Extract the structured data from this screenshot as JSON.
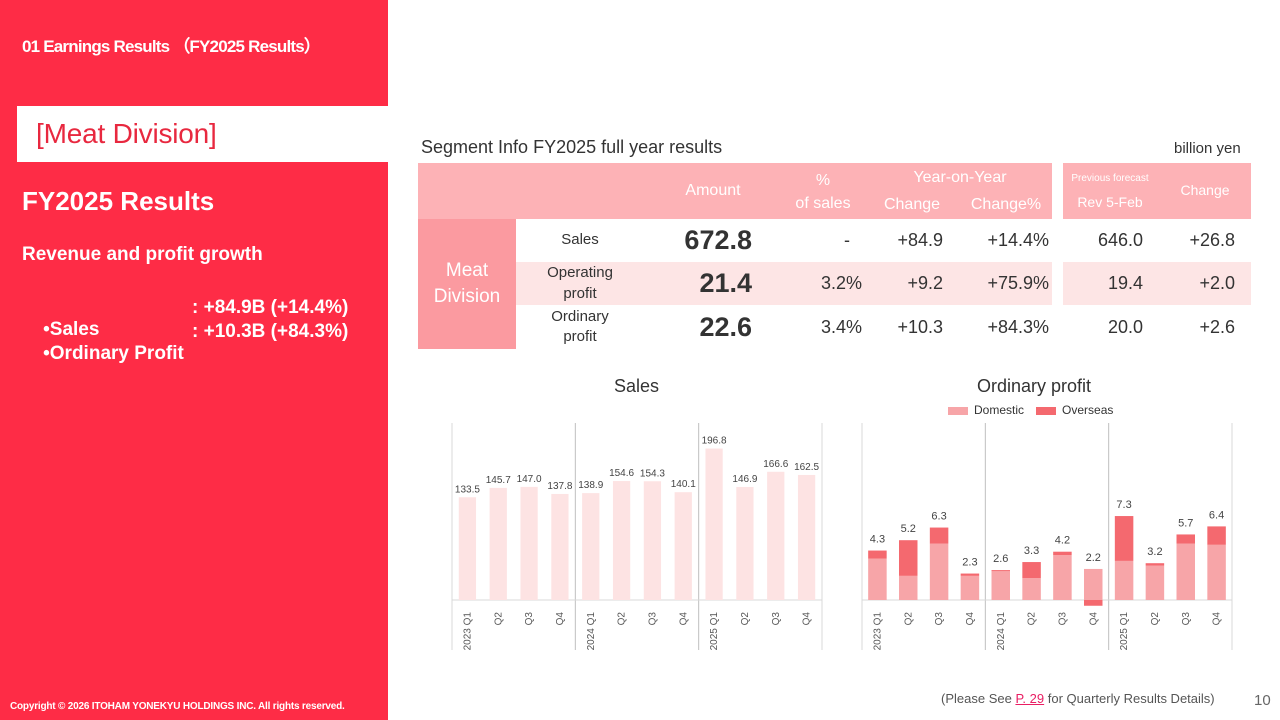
{
  "header": {
    "section_label": "01 Earnings Results （FY2025 Results）"
  },
  "sidebar": {
    "division_title": "[Meat Division]",
    "results_title": "FY2025 Results",
    "growth_text": "Revenue and profit growth",
    "bullets": [
      {
        "label": "•Sales",
        "value": ": +84.9B (+14.4%)"
      },
      {
        "label": "•Ordinary Profit",
        "value": ": +10.3B (+84.3%)"
      }
    ],
    "copyright": "Copyright © 2026 ITOHAM YONEKYU HOLDINGS INC. All rights reserved."
  },
  "table": {
    "title": "Segment Info FY2025 full year results",
    "unit": "billion yen",
    "headers": {
      "amount": "Amount",
      "pct_line1": "%",
      "pct_line2": "of sales",
      "yoy": "Year-on-Year",
      "change": "Change",
      "change_pct": "Change%",
      "prev_forecast": "Previous forecast",
      "rev_date": "Rev 5-Feb",
      "forecast_change": "Change"
    },
    "segment_label_line1": "Meat",
    "segment_label_line2": "Division",
    "rows": [
      {
        "label_line1": "Sales",
        "label_line2": "",
        "amount": "672.8",
        "pct": "-",
        "change": "+84.9",
        "change_pct": "+14.4%",
        "forecast": "646.0",
        "forecast_change": "+26.8"
      },
      {
        "label_line1": "Operating",
        "label_line2": "profit",
        "amount": "21.4",
        "pct": "3.2%",
        "change": "+9.2",
        "change_pct": "+75.9%",
        "forecast": "19.4",
        "forecast_change": "+2.0"
      },
      {
        "label_line1": "Ordinary",
        "label_line2": "profit",
        "amount": "22.6",
        "pct": "3.4%",
        "change": "+10.3",
        "change_pct": "+84.3%",
        "forecast": "20.0",
        "forecast_change": "+2.6"
      }
    ]
  },
  "chart_data": [
    {
      "type": "bar",
      "title": "Sales",
      "categories": [
        "2023 Q1",
        "Q2",
        "Q3",
        "Q4",
        "2024 Q1",
        "Q2",
        "Q3",
        "Q4",
        "2025 Q1",
        "Q2",
        "Q3",
        "Q4"
      ],
      "values": [
        133.5,
        145.7,
        147.0,
        137.8,
        138.9,
        154.6,
        154.3,
        140.1,
        196.8,
        146.9,
        166.6,
        162.5
      ],
      "labels": [
        "133.5",
        "145.7",
        "147.0",
        "137.8",
        "138.9",
        "154.6",
        "154.3",
        "140.1",
        "196.8",
        "146.9",
        "166.6",
        "162.5"
      ],
      "ylim": [
        0,
        230
      ],
      "colors": {
        "bar": "#fde3e3",
        "grid": "#d9d9d9",
        "divider": "#bfbfbf"
      }
    },
    {
      "type": "bar",
      "stacked": true,
      "title": "Ordinary profit",
      "categories": [
        "2023 Q1",
        "Q2",
        "Q3",
        "Q4",
        "2024 Q1",
        "Q2",
        "Q3",
        "Q4",
        "2025 Q1",
        "Q2",
        "Q3",
        "Q4"
      ],
      "series": [
        {
          "name": "Domestic",
          "values": [
            3.6,
            2.1,
            4.9,
            2.1,
            2.5,
            1.9,
            3.9,
            2.7,
            3.4,
            3.0,
            4.9,
            4.8
          ]
        },
        {
          "name": "Overseas",
          "values": [
            0.7,
            3.1,
            1.4,
            0.2,
            0.1,
            1.4,
            0.3,
            -0.5,
            3.9,
            0.2,
            0.8,
            1.6
          ]
        }
      ],
      "totals": [
        "4.3",
        "5.2",
        "6.3",
        "2.3",
        "2.6",
        "3.3",
        "4.2",
        "2.2",
        "7.3",
        "3.2",
        "5.7",
        "6.4"
      ],
      "ylim": [
        -1,
        8
      ],
      "legend": "top",
      "colors": {
        "domestic": "#f7a5a8",
        "overseas": "#f4696f",
        "grid": "#d9d9d9",
        "divider": "#bfbfbf"
      }
    }
  ],
  "footer": {
    "note_prefix": "(Please See ",
    "note_link": "P. 29",
    "note_suffix": " for Quarterly Results Details)",
    "page_number": "10"
  }
}
